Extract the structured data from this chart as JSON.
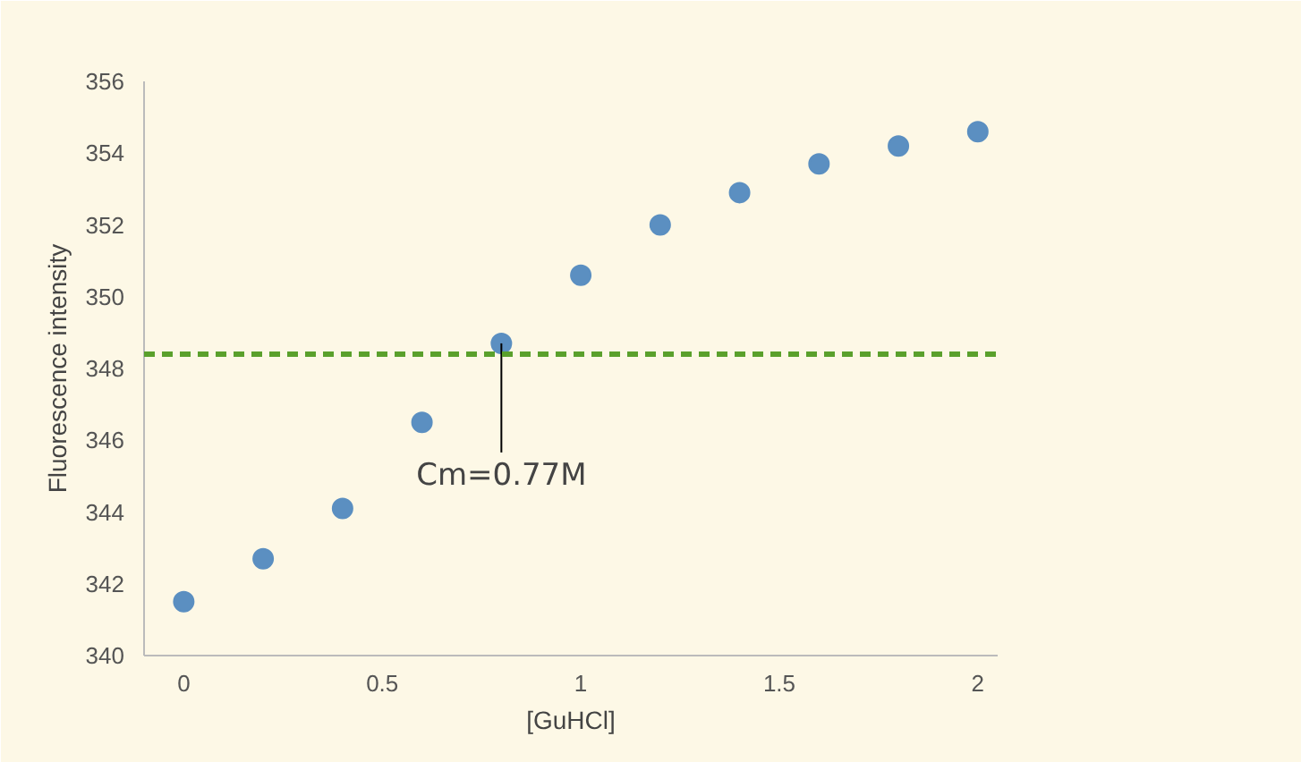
{
  "chart_data": {
    "type": "scatter",
    "xlabel": "[GuHCl]",
    "ylabel": "Fluorescence intensity",
    "x": [
      0,
      0.2,
      0.4,
      0.6,
      0.8,
      1.0,
      1.2,
      1.4,
      1.6,
      1.8,
      2.0
    ],
    "series": [
      {
        "color": "#5b8fc1",
        "values": [
          341.5,
          342.7,
          344.1,
          346.5,
          348.7,
          350.6,
          352.0,
          352.9,
          353.7,
          354.2,
          354.6
        ]
      }
    ],
    "xlim": [
      -0.1,
      2.05
    ],
    "xticks": [
      0,
      0.5,
      1,
      1.5,
      2
    ],
    "ylim": [
      340,
      356
    ],
    "yticks": [
      340,
      342,
      344,
      346,
      348,
      350,
      352,
      354,
      356
    ],
    "ref_lines": [
      {
        "axis": "y",
        "value": 348.4,
        "color": "#5aa02c",
        "line_style": "dashed"
      }
    ],
    "annotations": [
      {
        "text": "Cm=0.77M",
        "x": 0.8,
        "y": 348.7
      }
    ],
    "grid": false,
    "marker": "circle"
  }
}
